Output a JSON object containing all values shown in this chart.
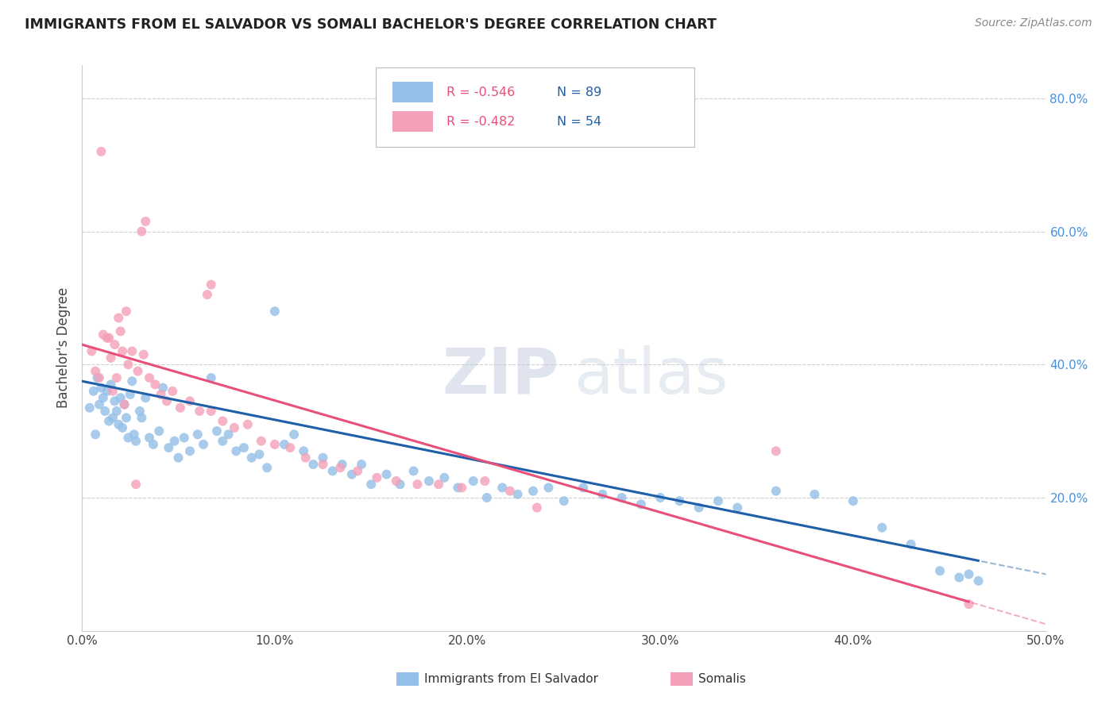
{
  "title": "IMMIGRANTS FROM EL SALVADOR VS SOMALI BACHELOR'S DEGREE CORRELATION CHART",
  "source": "Source: ZipAtlas.com",
  "xlabel_label": "Immigrants from El Salvador",
  "ylabel_label": "Bachelor's Degree",
  "x_min": 0.0,
  "x_max": 0.5,
  "y_min": 0.0,
  "y_max": 0.85,
  "x_ticks": [
    0.0,
    0.1,
    0.2,
    0.3,
    0.4,
    0.5
  ],
  "x_tick_labels": [
    "0.0%",
    "10.0%",
    "20.0%",
    "30.0%",
    "40.0%",
    "50.0%"
  ],
  "y_ticks": [
    0.2,
    0.4,
    0.6,
    0.8
  ],
  "y_tick_labels": [
    "20.0%",
    "40.0%",
    "60.0%",
    "80.0%"
  ],
  "R_blue": -0.546,
  "N_blue": 89,
  "R_pink": -0.482,
  "N_pink": 54,
  "color_blue": "#93bfe8",
  "color_pink": "#f4a0b8",
  "line_blue": "#1e5fa8",
  "line_pink": "#e8507a",
  "legend_R_color": "#e8507a",
  "legend_N_color": "#1e5fa8",
  "watermark_zip": "ZIP",
  "watermark_atlas": "atlas",
  "bg_color": "#ffffff",
  "blue_x": [
    0.004,
    0.006,
    0.007,
    0.008,
    0.009,
    0.01,
    0.011,
    0.012,
    0.013,
    0.014,
    0.015,
    0.016,
    0.017,
    0.018,
    0.019,
    0.02,
    0.021,
    0.022,
    0.023,
    0.024,
    0.025,
    0.026,
    0.027,
    0.028,
    0.03,
    0.031,
    0.033,
    0.035,
    0.037,
    0.04,
    0.042,
    0.045,
    0.048,
    0.05,
    0.053,
    0.056,
    0.06,
    0.063,
    0.067,
    0.07,
    0.073,
    0.076,
    0.08,
    0.084,
    0.088,
    0.092,
    0.096,
    0.1,
    0.105,
    0.11,
    0.115,
    0.12,
    0.125,
    0.13,
    0.135,
    0.14,
    0.145,
    0.15,
    0.158,
    0.165,
    0.172,
    0.18,
    0.188,
    0.195,
    0.203,
    0.21,
    0.218,
    0.226,
    0.234,
    0.242,
    0.25,
    0.26,
    0.27,
    0.28,
    0.29,
    0.3,
    0.31,
    0.32,
    0.33,
    0.34,
    0.36,
    0.38,
    0.4,
    0.415,
    0.43,
    0.445,
    0.455,
    0.46,
    0.465
  ],
  "blue_y": [
    0.335,
    0.36,
    0.295,
    0.38,
    0.34,
    0.365,
    0.35,
    0.33,
    0.36,
    0.315,
    0.37,
    0.32,
    0.345,
    0.33,
    0.31,
    0.35,
    0.305,
    0.34,
    0.32,
    0.29,
    0.355,
    0.375,
    0.295,
    0.285,
    0.33,
    0.32,
    0.35,
    0.29,
    0.28,
    0.3,
    0.365,
    0.275,
    0.285,
    0.26,
    0.29,
    0.27,
    0.295,
    0.28,
    0.38,
    0.3,
    0.285,
    0.295,
    0.27,
    0.275,
    0.26,
    0.265,
    0.245,
    0.48,
    0.28,
    0.295,
    0.27,
    0.25,
    0.26,
    0.24,
    0.25,
    0.235,
    0.25,
    0.22,
    0.235,
    0.22,
    0.24,
    0.225,
    0.23,
    0.215,
    0.225,
    0.2,
    0.215,
    0.205,
    0.21,
    0.215,
    0.195,
    0.215,
    0.205,
    0.2,
    0.19,
    0.2,
    0.195,
    0.185,
    0.195,
    0.185,
    0.21,
    0.205,
    0.195,
    0.155,
    0.13,
    0.09,
    0.08,
    0.085,
    0.075
  ],
  "pink_x": [
    0.005,
    0.007,
    0.009,
    0.011,
    0.013,
    0.015,
    0.017,
    0.019,
    0.021,
    0.023,
    0.026,
    0.029,
    0.032,
    0.035,
    0.038,
    0.041,
    0.044,
    0.047,
    0.051,
    0.056,
    0.061,
    0.067,
    0.073,
    0.079,
    0.086,
    0.093,
    0.1,
    0.108,
    0.116,
    0.125,
    0.134,
    0.143,
    0.153,
    0.163,
    0.174,
    0.185,
    0.197,
    0.209,
    0.222,
    0.236,
    0.031,
    0.033,
    0.065,
    0.067,
    0.01,
    0.014,
    0.016,
    0.018,
    0.02,
    0.022,
    0.024,
    0.028,
    0.36,
    0.46
  ],
  "pink_y": [
    0.42,
    0.39,
    0.38,
    0.445,
    0.44,
    0.41,
    0.43,
    0.47,
    0.42,
    0.48,
    0.42,
    0.39,
    0.415,
    0.38,
    0.37,
    0.355,
    0.345,
    0.36,
    0.335,
    0.345,
    0.33,
    0.33,
    0.315,
    0.305,
    0.31,
    0.285,
    0.28,
    0.275,
    0.26,
    0.25,
    0.245,
    0.24,
    0.23,
    0.225,
    0.22,
    0.22,
    0.215,
    0.225,
    0.21,
    0.185,
    0.6,
    0.615,
    0.505,
    0.52,
    0.72,
    0.44,
    0.36,
    0.38,
    0.45,
    0.34,
    0.4,
    0.22,
    0.27,
    0.04
  ]
}
